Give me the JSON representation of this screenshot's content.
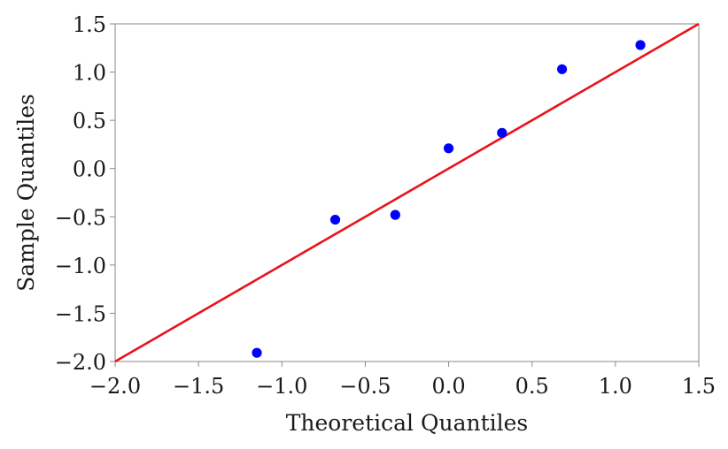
{
  "chart_data": {
    "type": "scatter",
    "title": "",
    "xlabel": "Theoretical Quantiles",
    "ylabel": "Sample Quantiles",
    "xlim": [
      -2.0,
      1.5
    ],
    "ylim": [
      -2.0,
      1.5
    ],
    "xticks": [
      -2.0,
      -1.5,
      -1.0,
      -0.5,
      0.0,
      0.5,
      1.0,
      1.5
    ],
    "yticks": [
      -2.0,
      -1.5,
      -1.0,
      -0.5,
      0.0,
      0.5,
      1.0,
      1.5
    ],
    "xtick_labels": [
      "−2.0",
      "−1.5",
      "−1.0",
      "−0.5",
      "0.0",
      "0.5",
      "1.0",
      "1.5"
    ],
    "ytick_labels": [
      "−2.0",
      "−1.5",
      "−1.0",
      "−0.5",
      "0.0",
      "0.5",
      "1.0",
      "1.5"
    ],
    "grid": false,
    "series": [
      {
        "type": "scatter",
        "color": "#0000ff",
        "x": [
          -1.15,
          -0.68,
          -0.32,
          0.0,
          0.32,
          0.68,
          1.15
        ],
        "y": [
          -1.91,
          -0.53,
          -0.48,
          0.21,
          0.37,
          1.03,
          1.28
        ]
      },
      {
        "type": "line",
        "color": "#e8131b",
        "x": [
          -2.0,
          1.5
        ],
        "y": [
          -2.0,
          1.5
        ]
      }
    ]
  }
}
